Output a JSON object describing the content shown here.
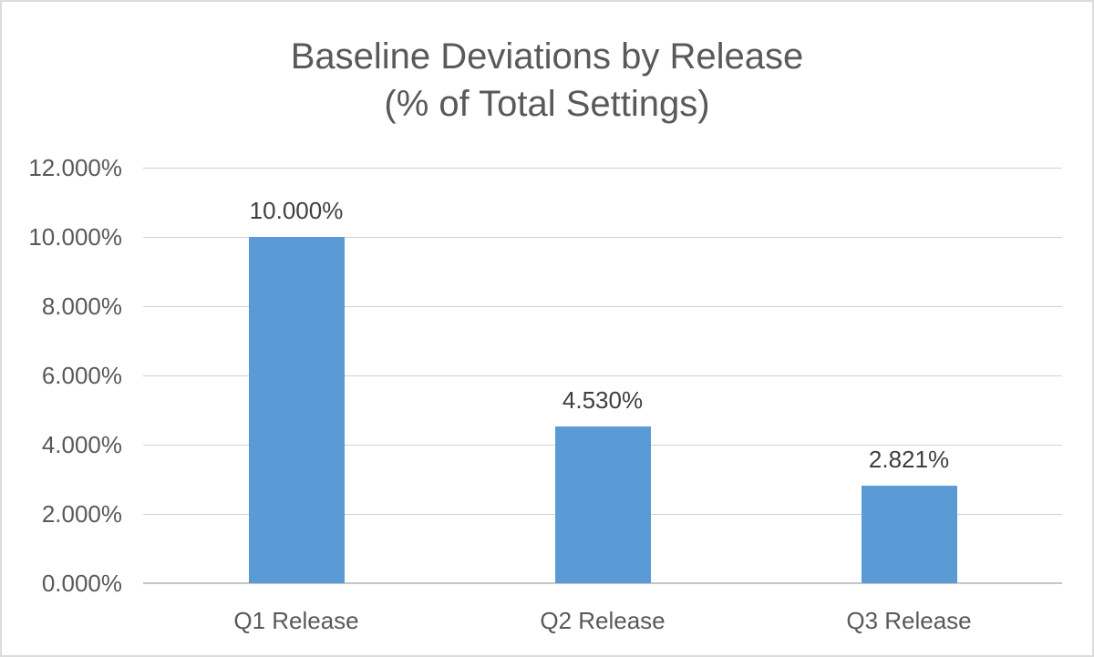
{
  "page": {
    "background": "#FFFFFF",
    "border_color": "#DCDCDC"
  },
  "chart_data": {
    "type": "bar",
    "title_line1": "Baseline Deviations by Release",
    "title_line2": "(% of Total Settings)",
    "categories": [
      "Q1 Release",
      "Q2 Release",
      "Q3 Release"
    ],
    "values": [
      10.0,
      4.53,
      2.821
    ],
    "data_labels": [
      "10.000%",
      "4.530%",
      "2.821%"
    ],
    "y_tick_values": [
      0,
      2,
      4,
      6,
      8,
      10,
      12
    ],
    "y_ticks": [
      "0.000%",
      "2.000%",
      "4.000%",
      "6.000%",
      "8.000%",
      "10.000%",
      "12.000%"
    ],
    "ylim": [
      0,
      12
    ],
    "xlabel": "",
    "ylabel": "",
    "grid": true,
    "legend": false,
    "bar_color": "#5B9BD5",
    "title_color": "#595959",
    "axis_label_color": "#595959",
    "data_label_color": "#404040",
    "gridline_color": "#D2D2D2",
    "axis_line_color": "#C6C6C6"
  }
}
